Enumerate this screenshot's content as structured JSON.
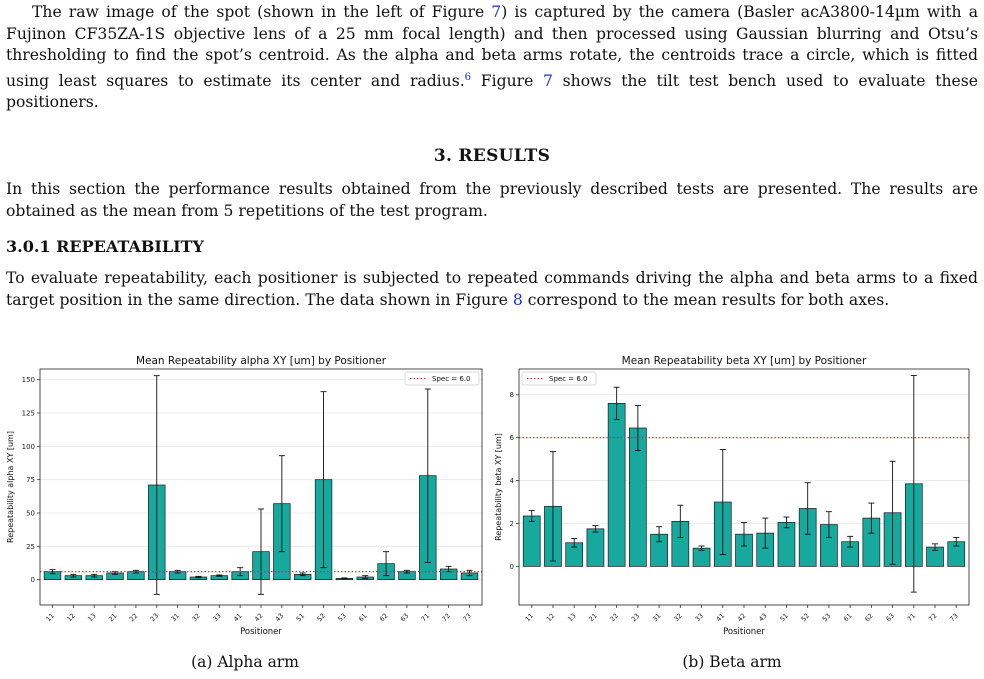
{
  "intro": {
    "t1": "The raw image of the spot (shown in the left of Figure ",
    "fig_ref": "7",
    "t2": ") is captured by the camera (Basler acA3800-14µm with a Fujinon CF35ZA-1S objective lens of a 25 mm focal length) and then processed using Gaussian blurring and Otsu’s thresholding to find the spot’s centroid. As the alpha and beta arms rotate, the centroids trace a circle, which is fitted using least squares to estimate its center and radius.",
    "footnote_ref": "6",
    "t3": " Figure ",
    "fig_ref2": "7",
    "t4": " shows the tilt test bench used to evaluate these positioners."
  },
  "section_heading": "3. RESULTS",
  "section_para": "In this section the performance results obtained from the previously described tests are presented. The results are obtained as the mean from 5 repetitions of the test program.",
  "subsection_heading": "3.0.1 REPEATABILITY",
  "subsection_para": {
    "t1": "To evaluate repeatability, each positioner is subjected to repeated commands driving the alpha and beta arms to a fixed target position in the same direction. The data shown in Figure ",
    "fig_ref": "8",
    "t2": " correspond to the mean results for both axes."
  },
  "captions": {
    "a": "(a) Alpha arm",
    "b": "(b) Beta arm"
  },
  "colors": {
    "bar": "#17a89e",
    "spec": "#d62728"
  },
  "chart_data": [
    {
      "type": "bar",
      "title": "Mean Repeatability alpha XY [um] by Positioner",
      "xlabel": "Positioner",
      "ylabel": "Repeatability alpha XY [um]",
      "categories": [
        "11",
        "12",
        "13",
        "21",
        "22",
        "23",
        "31",
        "32",
        "33",
        "41",
        "42",
        "43",
        "51",
        "52",
        "53",
        "61",
        "62",
        "63",
        "71",
        "72",
        "73"
      ],
      "values": [
        6,
        3,
        3,
        5,
        6,
        71,
        6,
        2,
        3,
        6,
        21,
        57,
        4,
        75,
        1,
        2,
        12,
        6,
        78,
        8,
        5
      ],
      "errors": [
        1.5,
        1,
        1,
        1,
        1,
        82,
        1,
        0.5,
        0.5,
        3,
        32,
        36,
        1,
        66,
        0.3,
        1,
        9,
        1,
        65,
        2,
        2
      ],
      "ylim": [
        -19,
        158
      ],
      "yticks": [
        0,
        25,
        50,
        75,
        100,
        125,
        150
      ],
      "spec": {
        "label": "Spec = 6.0",
        "value": 6.0
      },
      "legend": "top-right",
      "grid": true
    },
    {
      "type": "bar",
      "title": "Mean Repeatability beta XY [um] by Positioner",
      "xlabel": "Positioner",
      "ylabel": "Repeatability beta XY [um]",
      "categories": [
        "11",
        "12",
        "13",
        "21",
        "22",
        "23",
        "31",
        "32",
        "33",
        "41",
        "42",
        "43",
        "51",
        "52",
        "53",
        "61",
        "62",
        "63",
        "71",
        "72",
        "73"
      ],
      "values": [
        2.35,
        2.8,
        1.1,
        1.75,
        7.6,
        6.45,
        1.5,
        2.1,
        0.85,
        3.0,
        1.5,
        1.55,
        2.05,
        2.7,
        1.95,
        1.15,
        2.25,
        2.5,
        3.85,
        0.9,
        1.15
      ],
      "errors": [
        0.25,
        2.55,
        0.2,
        0.15,
        0.75,
        1.05,
        0.35,
        0.75,
        0.1,
        2.45,
        0.55,
        0.7,
        0.25,
        1.2,
        0.6,
        0.25,
        0.7,
        2.4,
        5.05,
        0.15,
        0.2
      ],
      "ylim": [
        -1.8,
        9.2
      ],
      "yticks": [
        0,
        2,
        4,
        6,
        8
      ],
      "spec": {
        "label": "Spec = 6.0",
        "value": 6.0
      },
      "legend": "top-left",
      "grid": true
    }
  ]
}
